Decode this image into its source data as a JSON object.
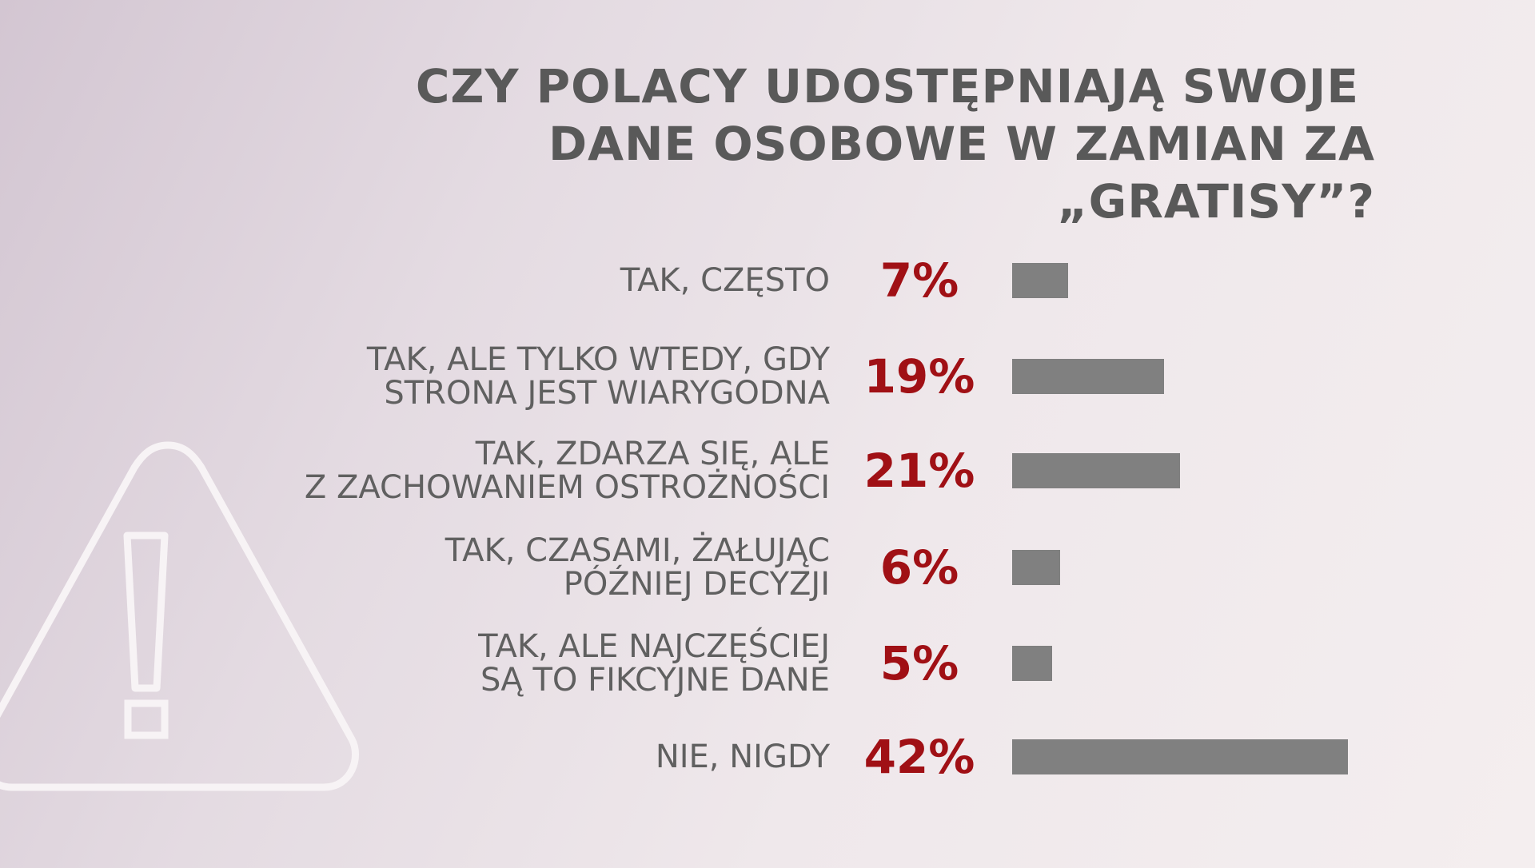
{
  "colors": {
    "bar": "#808080",
    "value_text": "#a01015",
    "label_text": "#606060",
    "title_text": "#595959",
    "icon_stroke": "#f7f3f5"
  },
  "icons": {
    "warning": "warning-triangle-icon"
  },
  "chart_data": {
    "type": "bar",
    "orientation": "horizontal",
    "title": "CZY POLACY UDOSTĘPNIAJĄ SWOJE DANE OSOBOWE W ZAMIAN ZA „GRATISY”?",
    "title_lines": [
      "CZY POLACY UDOSTĘPNIAJĄ SWOJE",
      "DANE OSOBOWE W ZAMIAN ZA „GRATISY”?"
    ],
    "xlim": [
      0,
      42
    ],
    "unit": "%",
    "grid": false,
    "legend": "none",
    "data": [
      {
        "label_lines": [
          "TAK, CZĘSTO"
        ],
        "value": 7,
        "value_label": "7%"
      },
      {
        "label_lines": [
          "TAK, ALE TYLKO WTEDY, GDY",
          "STRONA JEST WIARYGODNA"
        ],
        "value": 19,
        "value_label": "19%"
      },
      {
        "label_lines": [
          "TAK, ZDARZA SIĘ, ALE",
          "Z ZACHOWANIEM OSTROŻNOŚCI"
        ],
        "value": 21,
        "value_label": "21%"
      },
      {
        "label_lines": [
          "TAK, CZASAMI, ŻAŁUJĄC",
          "PÓŹNIEJ DECYZJI"
        ],
        "value": 6,
        "value_label": "6%"
      },
      {
        "label_lines": [
          "TAK, ALE NAJCZĘŚCIEJ",
          "SĄ TO FIKCYJNE DANE"
        ],
        "value": 5,
        "value_label": "5%"
      },
      {
        "label_lines": [
          "NIE, NIGDY"
        ],
        "value": 42,
        "value_label": "42%"
      }
    ]
  }
}
